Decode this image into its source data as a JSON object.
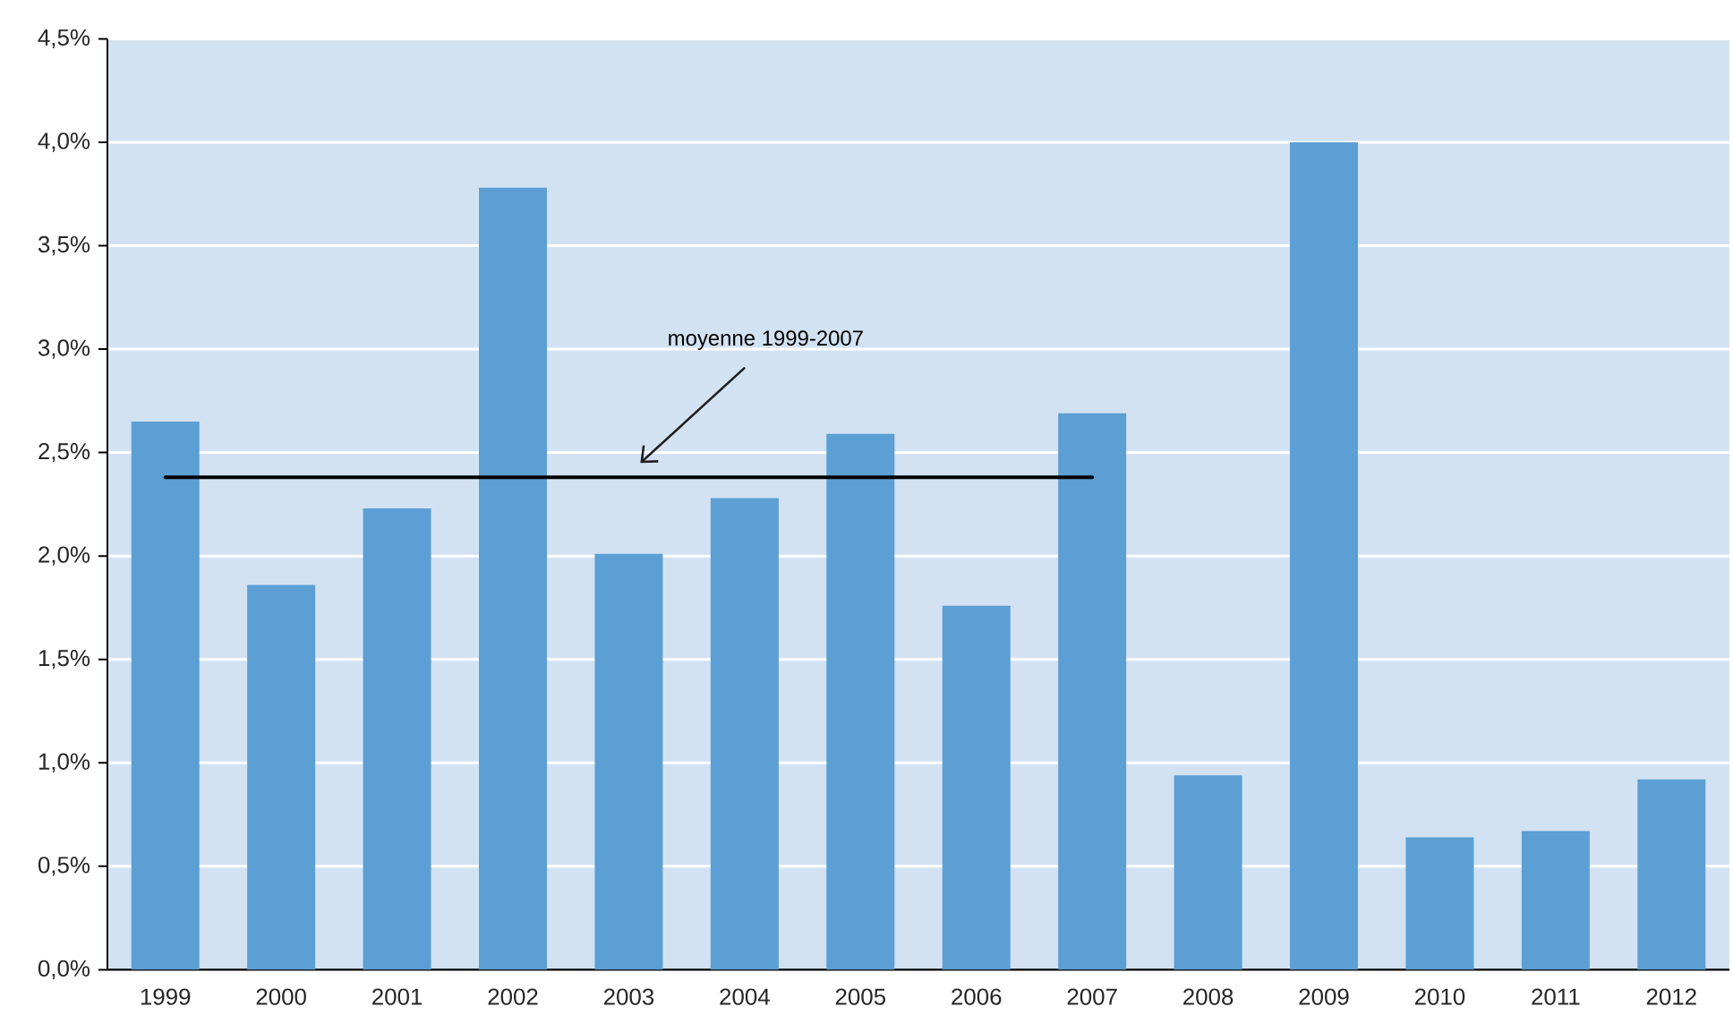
{
  "chart_data": {
    "type": "bar",
    "categories": [
      "1999",
      "2000",
      "2001",
      "2002",
      "2003",
      "2004",
      "2005",
      "2006",
      "2007",
      "2008",
      "2009",
      "2010",
      "2011",
      "2012"
    ],
    "series": [
      {
        "color": "#5b9fd4",
        "values": [
          2.65,
          1.86,
          2.23,
          3.78,
          2.01,
          2.28,
          2.59,
          1.76,
          2.69,
          0.94,
          4.0,
          0.64,
          0.67,
          0.92
        ]
      },
      {
        "type": "line",
        "name": "moyenne 1999-2007",
        "color": "#000000",
        "values": [
          2.38,
          2.38,
          2.38,
          2.38,
          2.38,
          2.38,
          2.38,
          2.38,
          2.38,
          null,
          null,
          null,
          null,
          null
        ]
      }
    ],
    "ylim": [
      0,
      4.5
    ],
    "yticks": [
      {
        "value": 0,
        "label": "0,0%"
      },
      {
        "value": 0.5,
        "label": "0,5%"
      },
      {
        "value": 1,
        "label": "1,0%"
      },
      {
        "value": 1.5,
        "label": "1,5%"
      },
      {
        "value": 2,
        "label": "2,0%"
      },
      {
        "value": 2.5,
        "label": "2,5%"
      },
      {
        "value": 3,
        "label": "3,0%"
      },
      {
        "value": 3.5,
        "label": "3,5%"
      },
      {
        "value": 4,
        "label": "4,0%"
      },
      {
        "value": 4.5,
        "label": "4,5%"
      }
    ],
    "grid": "y"
  }
}
